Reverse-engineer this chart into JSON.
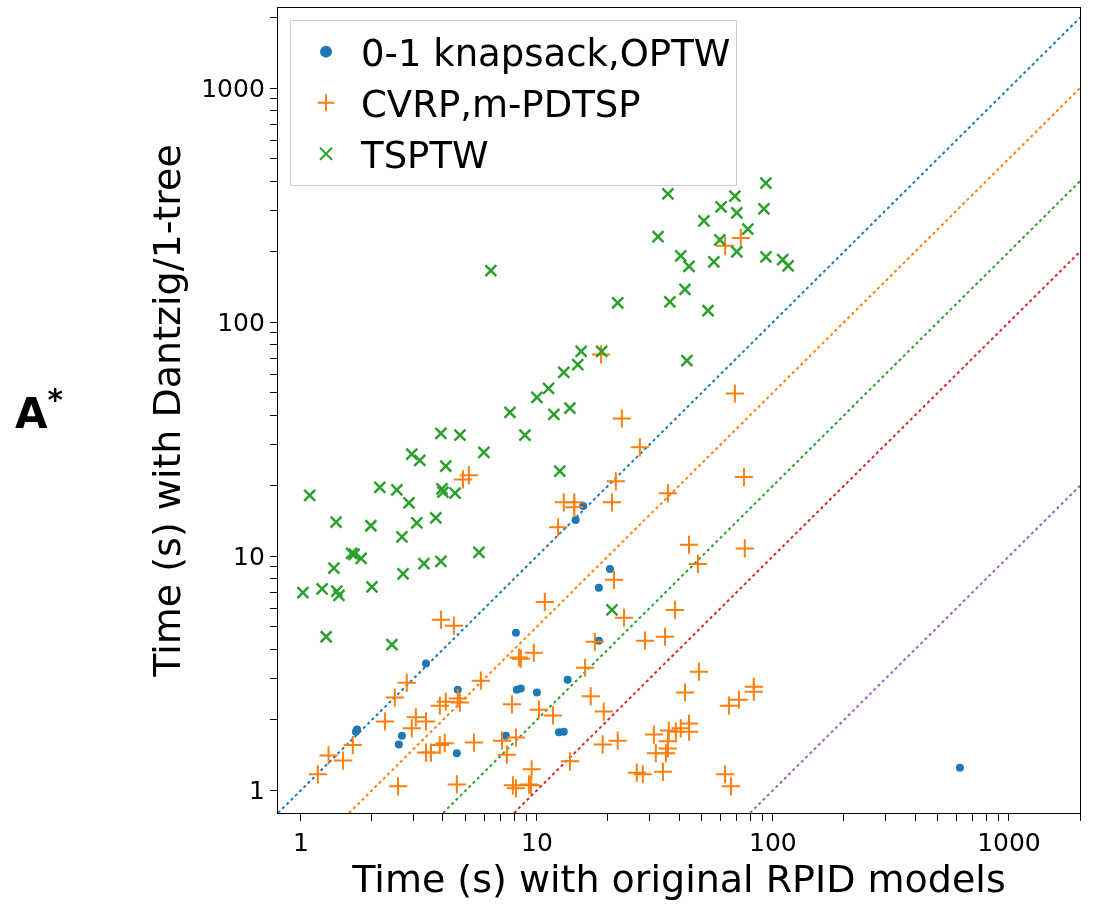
{
  "chart_data": {
    "type": "scatter",
    "xlabel": "Time (s) with original RPID models",
    "ylabel": "Time (s) with Dantzig/1-tree",
    "annotations": [
      "A$^{*}$"
    ],
    "log": "xy",
    "grid": false,
    "legend": "top left",
    "xlim": [
      0.8,
      2000
    ],
    "ylim": [
      0.8,
      2200
    ],
    "xticks": [
      1,
      {
        "value": 2,
        "label": null
      },
      {
        "value": 3,
        "label": null
      },
      {
        "value": 4,
        "label": null
      },
      {
        "value": 5,
        "label": null
      },
      {
        "value": 6,
        "label": null
      },
      {
        "value": 7,
        "label": null
      },
      {
        "value": 8,
        "label": null
      },
      {
        "value": 9,
        "label": null
      },
      10,
      {
        "value": 20,
        "label": null
      },
      {
        "value": 30,
        "label": null
      },
      {
        "value": 40,
        "label": null
      },
      {
        "value": 50,
        "label": null
      },
      {
        "value": 60,
        "label": null
      },
      {
        "value": 70,
        "label": null
      },
      {
        "value": 80,
        "label": null
      },
      {
        "value": 90,
        "label": null
      },
      100,
      {
        "value": 200,
        "label": null
      },
      {
        "value": 300,
        "label": null
      },
      {
        "value": 400,
        "label": null
      },
      {
        "value": 500,
        "label": null
      },
      {
        "value": 600,
        "label": null
      },
      {
        "value": 700,
        "label": null
      },
      {
        "value": 800,
        "label": null
      },
      {
        "value": 900,
        "label": null
      },
      1000,
      {
        "value": 2000,
        "label": null
      }
    ],
    "yticks": [
      1,
      {
        "value": 2,
        "label": null
      },
      {
        "value": 3,
        "label": null
      },
      {
        "value": 4,
        "label": null
      },
      {
        "value": 5,
        "label": null
      },
      {
        "value": 6,
        "label": null
      },
      {
        "value": 7,
        "label": null
      },
      {
        "value": 8,
        "label": null
      },
      {
        "value": 9,
        "label": null
      },
      10,
      {
        "value": 20,
        "label": null
      },
      {
        "value": 30,
        "label": null
      },
      {
        "value": 40,
        "label": null
      },
      {
        "value": 50,
        "label": null
      },
      {
        "value": 60,
        "label": null
      },
      {
        "value": 70,
        "label": null
      },
      {
        "value": 80,
        "label": null
      },
      {
        "value": 90,
        "label": null
      },
      100,
      {
        "value": 200,
        "label": null
      },
      {
        "value": 300,
        "label": null
      },
      {
        "value": 400,
        "label": null
      },
      {
        "value": 500,
        "label": null
      },
      {
        "value": 600,
        "label": null
      },
      {
        "value": 700,
        "label": null
      },
      {
        "value": 800,
        "label": null
      },
      {
        "value": 900,
        "label": null
      },
      1000,
      {
        "value": 2000,
        "label": null
      }
    ],
    "series": [
      {
        "type": "line",
        "line_style": "dotted",
        "color": "#1f77b4",
        "x": [
          0.8,
          2000
        ],
        "values": [
          0.8,
          2000
        ]
      },
      {
        "type": "line",
        "line_style": "dotted",
        "color": "#ff7f0e",
        "x": [
          1.6,
          2000
        ],
        "values": [
          0.8,
          1000
        ]
      },
      {
        "type": "line",
        "line_style": "dotted",
        "color": "#2ca02c",
        "x": [
          4,
          2000
        ],
        "values": [
          0.8,
          400
        ]
      },
      {
        "type": "line",
        "line_style": "dotted",
        "color": "#d62728",
        "x": [
          8,
          2000
        ],
        "values": [
          0.8,
          200
        ]
      },
      {
        "type": "line",
        "line_style": "dotted",
        "color": "#9467bd",
        "x": [
          80,
          2000
        ],
        "values": [
          0.8,
          20
        ]
      },
      {
        "name": "0-1 knapsack,OPTW",
        "marker": "circle",
        "color": "#1f77b4",
        "x": [
          3.39,
          4.62,
          8.15,
          8.22,
          1.71,
          1.73,
          2.68,
          2.6,
          4.58,
          7.39,
          15.7,
          14.6,
          20.4,
          18.3,
          18.3,
          13.5,
          10,
          8.55,
          12.4,
          13,
          620
        ],
        "values": [
          3.48,
          2.69,
          4.71,
          2.69,
          1.78,
          1.82,
          1.71,
          1.57,
          1.44,
          1.71,
          16.4,
          14.3,
          8.83,
          7.33,
          4.36,
          2.97,
          2.62,
          2.72,
          1.77,
          1.78,
          1.25
        ]
      },
      {
        "name": "CVRP,m-PDTSP",
        "marker": "cross",
        "color": "#ff7f0e",
        "x": [
          4.86,
          5.15,
          3.92,
          4.45,
          8.39,
          2.81,
          2.5,
          5.79,
          3.88,
          4.11,
          4.62,
          4.72,
          7.84,
          2.27,
          3.07,
          2.95,
          3.39,
          1.66,
          1.31,
          1.51,
          3.39,
          3.56,
          3.88,
          4.07,
          5.41,
          7.11,
          8.15,
          7.46,
          1.18,
          2.58,
          4.58,
          7.91,
          8.15,
          21.6,
          13,
          14.4,
          14.4,
          20.8,
          12.3,
          35.9,
          44.1,
          76,
          48.1,
          21.2,
          10.8,
          23.4,
          38.5,
          17.6,
          28.7,
          34.9,
          9.7,
          8.55,
          16,
          48.6,
          16.9,
          42.4,
          83,
          83,
          71.8,
          65.1,
          10.2,
          11.7,
          19.2,
          31.3,
          36.2,
          38.8,
          40.7,
          44.1,
          44.1,
          35.9,
          35.9,
          31.9,
          35.2,
          19,
          22,
          13.8,
          9.5,
          26.5,
          28.1,
          34.2,
          62.7,
          66.4,
          9.25,
          9.43,
          18.7,
          69,
          22.9,
          27.3,
          75.4,
          62.7,
          73.1
        ],
        "values": [
          21.3,
          22.2,
          5.35,
          5.05,
          3.69,
          2.88,
          2.49,
          2.94,
          2.3,
          2.39,
          2.47,
          2.37,
          2.33,
          1.97,
          2.05,
          1.84,
          1.97,
          1.56,
          1.41,
          1.34,
          1.45,
          1.45,
          1.56,
          1.59,
          1.6,
          1.63,
          1.68,
          1.42,
          1.17,
          1.04,
          1.06,
          1.05,
          1.02,
          20.9,
          17,
          17,
          16.2,
          17,
          13.3,
          18.6,
          11.2,
          10.8,
          9.27,
          7.93,
          6.38,
          5.46,
          5.9,
          4.31,
          4.36,
          4.53,
          3.87,
          3.65,
          3.34,
          3.21,
          2.52,
          2.62,
          2.77,
          2.64,
          2.44,
          2.3,
          2.21,
          2.09,
          2.17,
          1.73,
          1.8,
          1.78,
          1.84,
          1.93,
          1.78,
          1.62,
          1.51,
          1.44,
          1.44,
          1.57,
          1.63,
          1.33,
          1.23,
          1.19,
          1.17,
          1.2,
          1.17,
          1.04,
          1.06,
          1.05,
          72.8,
          49.6,
          38.8,
          29.2,
          21.8,
          212,
          229
        ]
      },
      {
        "name": "TSPTW",
        "marker": "x",
        "color": "#2ca02c",
        "x": [
          1.02,
          1.09,
          1.23,
          1.28,
          1.38,
          1.41,
          1.42,
          1.45,
          1.64,
          1.68,
          1.8,
          1.98,
          2,
          2.16,
          2.55,
          2.43,
          2.68,
          2.71,
          2.87,
          2.95,
          3.19,
          3.1,
          3.32,
          3.73,
          3.92,
          3.92,
          3.96,
          4,
          4.11,
          4.5,
          4.72,
          5.68,
          5.96,
          6.38,
          7.69,
          8.9,
          10,
          11.2,
          11.8,
          12.5,
          13,
          13.8,
          14.9,
          15.4,
          18.8,
          20.8,
          22,
          36.6,
          42.4,
          44.1,
          43.2,
          53.1,
          56.2,
          116,
          35.9,
          32.6,
          40.7,
          51,
          60.3,
          69,
          70.3,
          78.3,
          59.6,
          70.3,
          93.4,
          91.6,
          93.4,
          110
        ],
        "values": [
          7,
          18.2,
          7.26,
          4.53,
          8.9,
          14,
          7.1,
          6.8,
          10.3,
          10.2,
          9.8,
          13.5,
          7.4,
          19.7,
          19.2,
          4.19,
          12.1,
          8.4,
          16.9,
          27.3,
          25.7,
          13.9,
          9.3,
          14.6,
          9.5,
          33.5,
          19.4,
          18.8,
          24.3,
          18.6,
          32.9,
          10.4,
          27.8,
          166,
          41.2,
          32.9,
          47.7,
          52.1,
          40.4,
          23.1,
          61,
          42.9,
          65.9,
          75,
          75,
          5.9,
          121,
          122,
          138,
          173,
          68.6,
          112,
          181,
          174,
          353,
          232,
          192,
          271,
          311,
          346,
          293,
          250,
          225,
          200,
          393,
          305,
          190,
          185
        ]
      }
    ]
  }
}
